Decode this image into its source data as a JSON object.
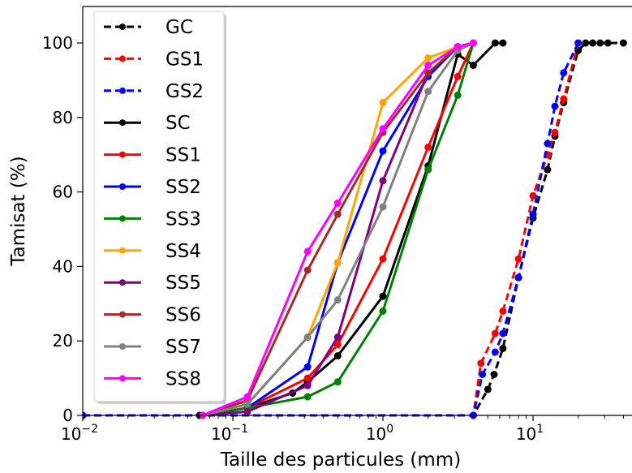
{
  "chart_data": {
    "type": "line",
    "xlabel": "Taille des particules (mm)",
    "ylabel": "Tamisat (%)",
    "xscale": "log",
    "xlim": [
      0.01,
      40
    ],
    "ylim": [
      0,
      110
    ],
    "x_ticks": [
      {
        "value": 0.01,
        "base": "10",
        "exp": "−2"
      },
      {
        "value": 0.1,
        "base": "10",
        "exp": "−1"
      },
      {
        "value": 1,
        "base": "10",
        "exp": "0"
      },
      {
        "value": 10,
        "base": "10",
        "exp": "1"
      }
    ],
    "y_ticks": [
      "0",
      "20",
      "40",
      "60",
      "80",
      "100"
    ],
    "grid": false,
    "legend_position": "upper-left",
    "series": [
      {
        "name": "GC",
        "color": "#000000",
        "dashed": true,
        "x": [
          0.01,
          4.0,
          5.0,
          5.5,
          6.3,
          8.0,
          10.0,
          12.5,
          14.0,
          16.0,
          20.0,
          22.4,
          25.0,
          28.0,
          31.5,
          40.0
        ],
        "y": [
          0,
          0,
          7,
          11,
          18,
          37,
          53,
          66,
          75,
          84,
          98,
          100,
          100,
          100,
          100,
          100
        ]
      },
      {
        "name": "GS1",
        "color": "#ff0000",
        "dashed": true,
        "x": [
          0.01,
          4.0,
          4.5,
          5.6,
          6.3,
          8.0,
          10.0,
          12.5,
          14.0,
          16.0,
          20.0
        ],
        "y": [
          0,
          0,
          14,
          22,
          28,
          42,
          59,
          70,
          76,
          85,
          100
        ]
      },
      {
        "name": "GS2",
        "color": "#0000ff",
        "dashed": true,
        "x": [
          0.01,
          4.0,
          4.6,
          5.6,
          6.3,
          8.0,
          10.0,
          12.5,
          14.0,
          16.0,
          20.0
        ],
        "y": [
          0,
          0,
          11,
          17,
          22,
          37,
          54,
          73,
          83,
          92,
          100
        ]
      },
      {
        "name": "SC",
        "color": "#000000",
        "dashed": false,
        "x": [
          0.06,
          0.063,
          0.125,
          0.25,
          0.315,
          0.5,
          1.0,
          2.0,
          3.15,
          4.0,
          5.6,
          6.3
        ],
        "y": [
          0,
          0,
          2,
          6,
          9,
          16,
          32,
          67,
          97,
          94,
          100,
          100
        ]
      },
      {
        "name": "SS1",
        "color": "#ff0000",
        "dashed": false,
        "x": [
          0.063,
          0.125,
          0.315,
          0.5,
          1.0,
          2.0,
          3.15,
          4.0
        ],
        "y": [
          0,
          2,
          10,
          19,
          42,
          72,
          91,
          100
        ]
      },
      {
        "name": "SS2",
        "color": "#0000ff",
        "dashed": false,
        "x": [
          0.063,
          0.125,
          0.315,
          0.5,
          1.0,
          2.0,
          3.15,
          4.0
        ],
        "y": [
          0,
          2,
          13,
          41,
          71,
          91,
          99,
          100
        ]
      },
      {
        "name": "SS3",
        "color": "#008000",
        "dashed": false,
        "x": [
          0.063,
          0.125,
          0.315,
          0.5,
          1.0,
          2.0,
          3.15,
          4.0
        ],
        "y": [
          0,
          2,
          5,
          9,
          28,
          66,
          86,
          100
        ]
      },
      {
        "name": "SS4",
        "color": "#ffa500",
        "dashed": false,
        "x": [
          0.063,
          0.125,
          0.315,
          0.5,
          1.0,
          2.0,
          3.15,
          4.0
        ],
        "y": [
          0,
          3,
          21,
          41,
          84,
          96,
          99,
          100
        ]
      },
      {
        "name": "SS5",
        "color": "#800080",
        "dashed": false,
        "x": [
          0.063,
          0.125,
          0.315,
          0.5,
          1.0,
          2.0,
          3.15,
          4.0
        ],
        "y": [
          0,
          1,
          8,
          21,
          63,
          92,
          99,
          100
        ]
      },
      {
        "name": "SS6",
        "color": "#a52a2a",
        "dashed": false,
        "x": [
          0.063,
          0.125,
          0.315,
          0.5,
          1.0,
          2.0,
          3.15,
          4.0
        ],
        "y": [
          0,
          4,
          39,
          54,
          76,
          92,
          99,
          100
        ]
      },
      {
        "name": "SS7",
        "color": "#808080",
        "dashed": false,
        "x": [
          0.063,
          0.125,
          0.315,
          0.5,
          1.0,
          2.0,
          3.15,
          4.0
        ],
        "y": [
          0,
          3,
          21,
          31,
          56,
          87,
          98,
          100
        ]
      },
      {
        "name": "SS8",
        "color": "#ff00ff",
        "dashed": false,
        "x": [
          0.063,
          0.125,
          0.315,
          0.5,
          1.0,
          2.0,
          3.15,
          4.0
        ],
        "y": [
          0,
          5,
          44,
          57,
          77,
          94,
          99,
          100
        ]
      }
    ]
  }
}
